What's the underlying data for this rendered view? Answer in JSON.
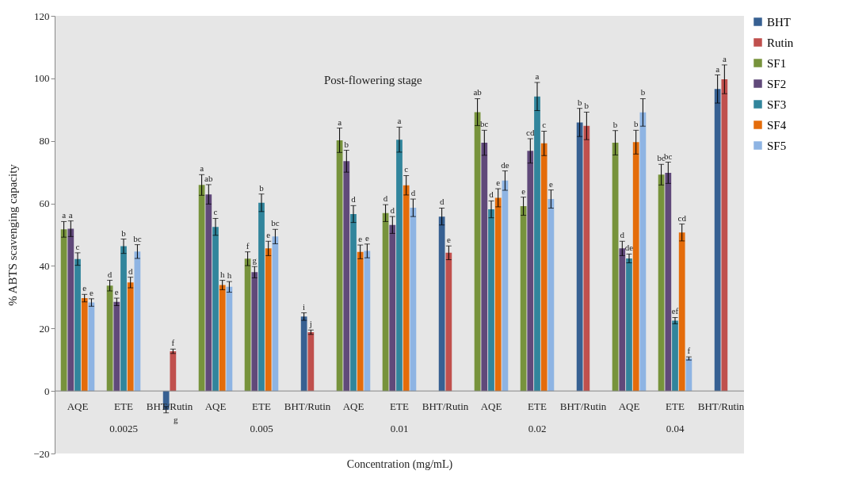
{
  "chart_data": {
    "type": "bar",
    "title": "Post-flowering stage",
    "xlabel": "Concentration (mg/mL)",
    "ylabel": "% ABTS scavenging capacity",
    "categories": [
      "AQE",
      "ETE",
      "BHT/Rutin",
      "AQE",
      "ETE",
      "BHT/Rutin",
      "AQE",
      "ETE",
      "BHT/Rutin",
      "AQE",
      "ETE",
      "BHT/Rutin",
      "AQE",
      "ETE",
      "BHT/Rutin"
    ],
    "annotations": [
      "0.0025",
      "0.005",
      "0.01",
      "0.02",
      "0.04"
    ],
    "series": [
      {
        "name": "BHT",
        "color": "#376092",
        "values": [
          null,
          null,
          -6,
          null,
          null,
          23.8,
          null,
          null,
          55.8,
          null,
          null,
          85.9,
          null,
          null,
          96.6
        ],
        "errors": [
          null,
          null,
          1.0,
          null,
          null,
          1.2,
          null,
          null,
          2.7,
          null,
          null,
          4.5,
          null,
          null,
          4.5
        ],
        "value_labels": [
          null,
          null,
          "g",
          null,
          null,
          "i",
          null,
          null,
          "d",
          null,
          null,
          "b",
          null,
          null,
          "a"
        ]
      },
      {
        "name": "Rutin",
        "color": "#c0504d",
        "values": [
          null,
          null,
          12.7,
          null,
          null,
          18.8,
          null,
          null,
          44.2,
          null,
          null,
          84.8,
          null,
          null,
          99.7
        ],
        "errors": [
          null,
          null,
          0.7,
          null,
          null,
          0.7,
          null,
          null,
          2.2,
          null,
          null,
          4.4,
          null,
          null,
          4.6
        ],
        "value_labels": [
          null,
          null,
          "f",
          null,
          null,
          "j",
          null,
          null,
          "e",
          null,
          null,
          "b",
          null,
          null,
          "a"
        ]
      },
      {
        "name": "SF1",
        "color": "#77933c",
        "values": [
          51.7,
          33.7,
          null,
          65.9,
          42.3,
          null,
          80.2,
          56.9,
          null,
          89.2,
          59.1,
          null,
          79.4,
          69.2,
          null
        ],
        "errors": [
          2.5,
          1.7,
          null,
          3.3,
          2.2,
          null,
          3.9,
          2.7,
          null,
          4.3,
          2.9,
          null,
          3.9,
          3.3,
          null
        ],
        "value_labels": [
          "a",
          "d",
          null,
          "a",
          "f",
          null,
          "a",
          "d",
          null,
          "ab",
          "e",
          null,
          "b",
          "bc",
          null
        ]
      },
      {
        "name": "SF2",
        "color": "#60497a",
        "values": [
          51.9,
          28.5,
          null,
          62.9,
          38.0,
          null,
          73.5,
          53.1,
          null,
          79.4,
          76.8,
          null,
          45.6,
          69.8,
          null
        ],
        "errors": [
          2.5,
          1.2,
          null,
          3.1,
          1.8,
          null,
          3.5,
          2.7,
          null,
          4.0,
          3.9,
          null,
          2.3,
          3.4,
          null
        ],
        "value_labels": [
          "a",
          "e",
          null,
          "ab",
          "g",
          null,
          "b",
          "d",
          null,
          "bc",
          "cd",
          null,
          "d",
          "bc",
          null
        ]
      },
      {
        "name": "SF3",
        "color": "#31859c",
        "values": [
          42.2,
          46.3,
          null,
          52.5,
          60.2,
          null,
          56.6,
          80.4,
          null,
          58.1,
          94.2,
          null,
          42.4,
          22.5,
          null
        ],
        "errors": [
          2.0,
          2.3,
          null,
          2.7,
          2.8,
          null,
          2.7,
          4.0,
          null,
          2.7,
          4.5,
          null,
          1.4,
          1.0,
          null
        ],
        "value_labels": [
          "c",
          "b",
          null,
          "c",
          "b",
          null,
          "d",
          "a",
          null,
          "d",
          "a",
          null,
          "de",
          "ef",
          null
        ]
      },
      {
        "name": "SF4",
        "color": "#e46c0a",
        "values": [
          29.7,
          34.7,
          null,
          33.9,
          45.6,
          null,
          44.5,
          65.8,
          null,
          61.8,
          79.2,
          null,
          79.6,
          50.7,
          null
        ],
        "errors": [
          1.2,
          1.7,
          null,
          1.5,
          2.3,
          null,
          2.2,
          3.1,
          null,
          2.9,
          3.9,
          null,
          3.8,
          2.7,
          null
        ],
        "value_labels": [
          "e",
          "d",
          null,
          "h",
          "e",
          null,
          "e",
          "c",
          null,
          "e",
          "c",
          null,
          "b",
          "cd",
          null
        ]
      },
      {
        "name": "SF5",
        "color": "#8eb4e3",
        "values": [
          28.3,
          44.6,
          null,
          33.3,
          49.4,
          null,
          44.8,
          58.6,
          null,
          67.3,
          61.4,
          null,
          89.1,
          10.4,
          null
        ],
        "errors": [
          1.2,
          2.2,
          null,
          1.7,
          2.3,
          null,
          2.2,
          2.8,
          null,
          3.1,
          2.9,
          null,
          4.4,
          0.5,
          null
        ],
        "value_labels": [
          "e",
          "bc",
          null,
          "h",
          "bc",
          null,
          "e",
          "d",
          null,
          "de",
          "e",
          null,
          "b",
          "f",
          null
        ]
      }
    ],
    "ylim": [
      -20,
      120
    ],
    "yticks": [
      -20,
      0,
      20,
      40,
      60,
      80,
      100,
      120
    ],
    "legend": "right"
  }
}
